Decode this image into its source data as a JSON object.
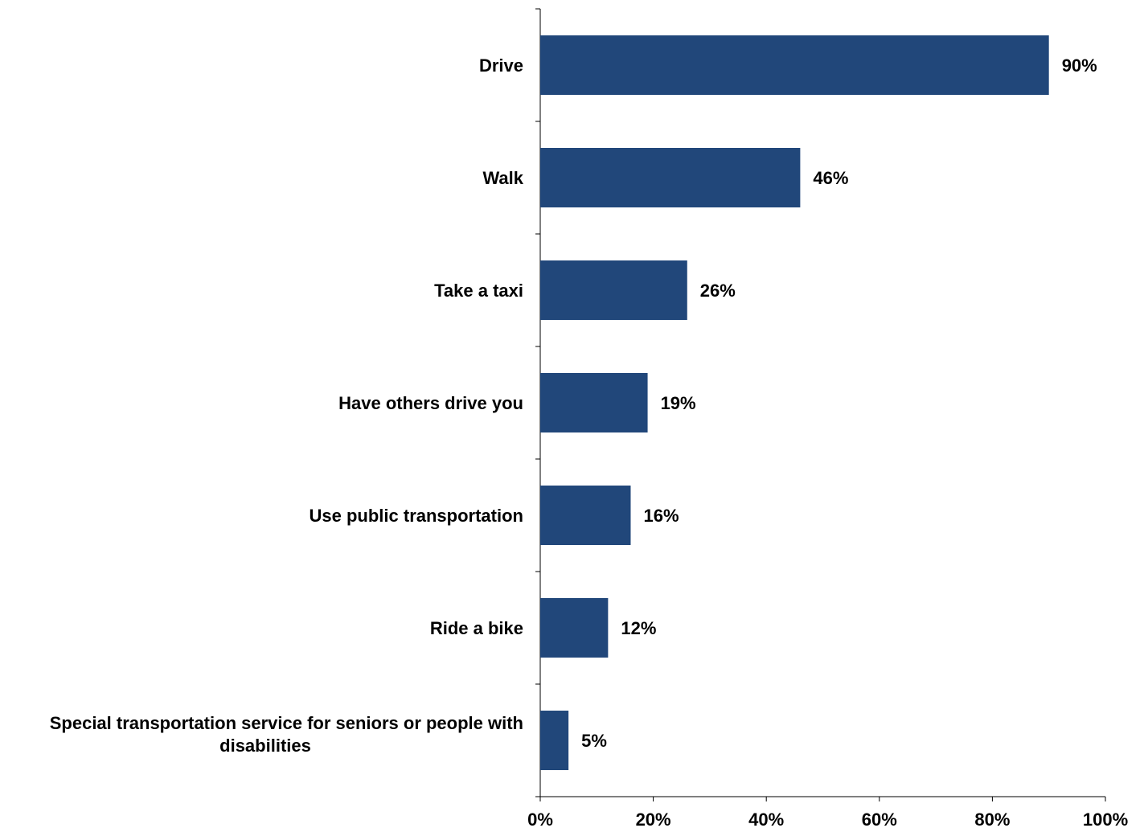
{
  "chart_data": {
    "type": "bar",
    "orientation": "horizontal",
    "categories": [
      "Drive",
      "Walk",
      "Take a taxi",
      "Have others drive you",
      "Use public transportation",
      "Ride a bike",
      "Special transportation service for seniors or people with disabilities"
    ],
    "category_lines": [
      [
        "Drive"
      ],
      [
        "Walk"
      ],
      [
        "Take a taxi"
      ],
      [
        "Have others drive you"
      ],
      [
        "Use public transportation"
      ],
      [
        "Ride a bike"
      ],
      [
        "Special transportation service for seniors or people with",
        "disabilities"
      ]
    ],
    "values": [
      90,
      46,
      26,
      19,
      16,
      12,
      5
    ],
    "data_labels": [
      "90%",
      "46%",
      "26%",
      "19%",
      "16%",
      "12%",
      "5%"
    ],
    "x_ticks": [
      0,
      20,
      40,
      60,
      80,
      100
    ],
    "x_tick_labels": [
      "0%",
      "20%",
      "40%",
      "60%",
      "80%",
      "100%"
    ],
    "xlim": [
      0,
      100
    ],
    "grid": false,
    "legend": "none",
    "bar_color": "#21477A"
  }
}
